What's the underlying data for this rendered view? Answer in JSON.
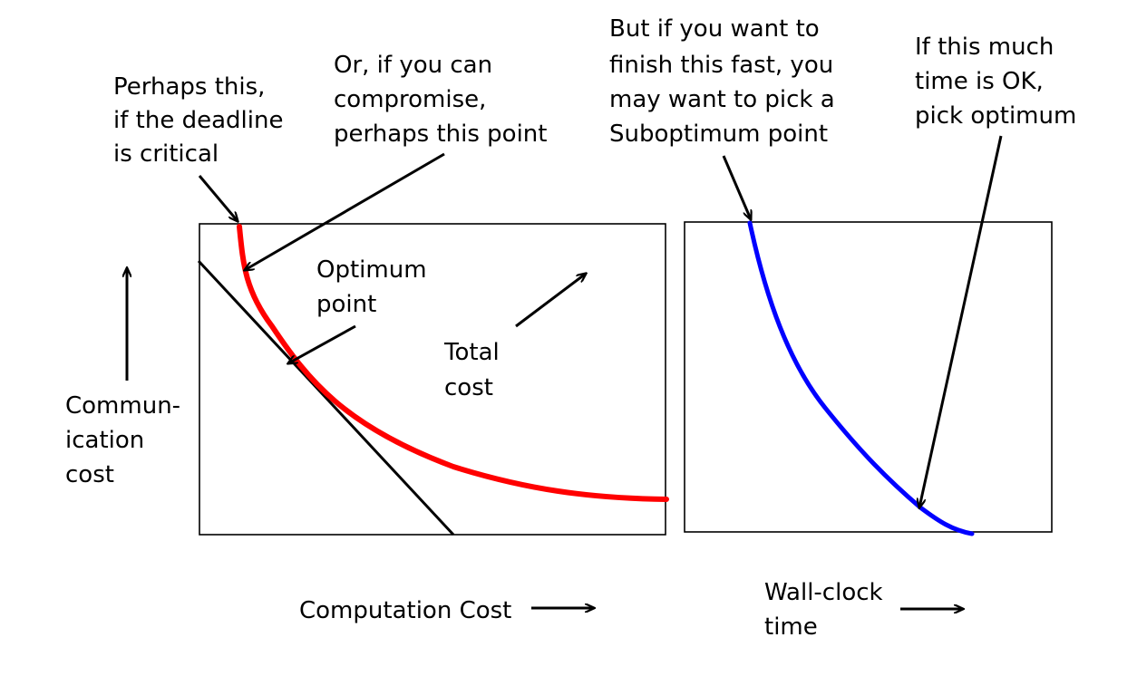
{
  "colors": {
    "ink": "#000000",
    "total_cost_curve": "#ff0000",
    "time_curve": "#0000ff",
    "background": "#ffffff"
  },
  "left_panel": {
    "y_axis_label": [
      "Commun-",
      "ication",
      "cost"
    ],
    "x_axis_label": "Computation Cost",
    "annotations": {
      "deadline": [
        "Perhaps this,",
        "if the deadline",
        "is critical"
      ],
      "compromise": [
        "Or, if you can",
        "compromise,",
        "perhaps this point"
      ],
      "optimum": [
        "Optimum",
        "point"
      ],
      "total_cost": [
        "Total",
        "cost"
      ]
    }
  },
  "right_panel": {
    "x_axis_label": [
      "Wall-clock",
      "time"
    ],
    "annotations": {
      "suboptimum": [
        "But if you want to",
        "finish this fast, you",
        "may want to pick a",
        "Suboptimum point"
      ],
      "optimum": [
        "If this much",
        "time is OK,",
        "pick optimum"
      ]
    }
  }
}
